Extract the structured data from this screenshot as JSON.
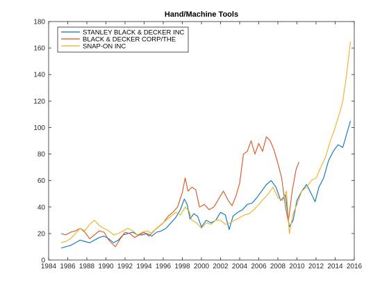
{
  "chart_data": {
    "type": "line",
    "title": "Hand/Machine Tools",
    "xlabel": "",
    "ylabel": "",
    "xlim": [
      1984,
      2016
    ],
    "ylim": [
      0,
      180
    ],
    "xticks": [
      "1984",
      "1986",
      "1988",
      "1990",
      "1992",
      "1994",
      "1996",
      "1998",
      "2000",
      "2002",
      "2004",
      "2006",
      "2008",
      "2010",
      "2012",
      "2014",
      "2016"
    ],
    "yticks": [
      "0",
      "20",
      "40",
      "60",
      "80",
      "100",
      "120",
      "140",
      "160",
      "180"
    ],
    "grid": false,
    "legend_position": "top-left",
    "series": [
      {
        "name": "STANLEY BLACK & DECKER INC",
        "color": "#0072BD",
        "x": [
          1985.3,
          1985.8,
          1986.3,
          1986.8,
          1987.3,
          1987.8,
          1988.3,
          1988.8,
          1989.3,
          1989.8,
          1990.3,
          1990.8,
          1991.3,
          1991.8,
          1992.3,
          1992.8,
          1993.3,
          1993.8,
          1994.3,
          1994.8,
          1995.3,
          1995.8,
          1996.3,
          1996.8,
          1997.3,
          1997.8,
          1998.2,
          1998.5,
          1998.8,
          1999.2,
          1999.6,
          2000.0,
          2000.5,
          2001.0,
          2001.5,
          2002.0,
          2002.5,
          2002.9,
          2003.3,
          2003.8,
          2004.3,
          2004.8,
          2005.3,
          2005.8,
          2006.3,
          2006.8,
          2007.3,
          2007.8,
          2008.3,
          2008.8,
          2009.2,
          2009.6,
          2010.0,
          2010.5,
          2011.0,
          2011.5,
          2011.9,
          2012.3,
          2012.8,
          2013.3,
          2013.8,
          2014.3,
          2014.8,
          2015.2,
          2015.6
        ],
        "values": [
          9,
          10,
          11,
          13,
          15,
          14,
          13,
          15,
          17,
          18,
          16,
          13,
          15,
          19,
          20,
          21,
          19,
          19,
          20,
          18,
          21,
          22,
          24,
          28,
          32,
          38,
          46,
          42,
          31,
          35,
          33,
          25,
          30,
          28,
          30,
          36,
          34,
          23,
          33,
          36,
          38,
          42,
          43,
          47,
          52,
          57,
          60,
          55,
          45,
          49,
          25,
          30,
          45,
          52,
          57,
          50,
          44,
          55,
          62,
          75,
          82,
          87,
          85,
          95,
          105
        ]
      },
      {
        "name": "BLACK & DECKER CORP/THE",
        "color": "#D95319",
        "x": [
          1985.3,
          1985.8,
          1986.3,
          1986.8,
          1987.3,
          1987.8,
          1988.3,
          1988.8,
          1989.3,
          1989.8,
          1990.3,
          1990.7,
          1991.0,
          1991.5,
          1992.0,
          1992.5,
          1993.0,
          1993.5,
          1994.0,
          1994.5,
          1995.0,
          1995.5,
          1996.0,
          1996.5,
          1997.0,
          1997.5,
          1998.0,
          1998.3,
          1998.6,
          1999.0,
          1999.4,
          1999.8,
          2000.3,
          2000.8,
          2001.3,
          2001.8,
          2002.3,
          2002.8,
          2003.2,
          2003.6,
          2004.0,
          2004.4,
          2004.8,
          2005.2,
          2005.6,
          2006.0,
          2006.4,
          2006.8,
          2007.2,
          2007.6,
          2008.0,
          2008.4,
          2008.8,
          2009.1,
          2009.5,
          2009.9,
          2010.2
        ],
        "values": [
          20,
          19,
          21,
          22,
          24,
          21,
          16,
          19,
          22,
          21,
          15,
          12,
          10,
          16,
          21,
          20,
          17,
          19,
          21,
          18,
          22,
          25,
          28,
          33,
          36,
          40,
          51,
          62,
          52,
          55,
          53,
          40,
          42,
          38,
          40,
          46,
          52,
          45,
          41,
          48,
          58,
          80,
          82,
          90,
          80,
          88,
          82,
          93,
          90,
          83,
          73,
          62,
          40,
          29,
          52,
          68,
          74
        ]
      },
      {
        "name": "SNAP-ON INC",
        "color": "#EDB120",
        "x": [
          1985.3,
          1985.8,
          1986.3,
          1986.8,
          1987.3,
          1987.8,
          1988.3,
          1988.8,
          1989.3,
          1989.8,
          1990.3,
          1990.8,
          1991.3,
          1991.8,
          1992.3,
          1992.8,
          1993.3,
          1993.8,
          1994.3,
          1994.8,
          1995.3,
          1995.8,
          1996.3,
          1996.8,
          1997.3,
          1997.8,
          1998.3,
          1998.7,
          1999.0,
          1999.5,
          2000.0,
          2000.5,
          2001.0,
          2001.5,
          2002.0,
          2002.5,
          2003.0,
          2003.5,
          2004.0,
          2004.5,
          2005.0,
          2005.5,
          2006.0,
          2006.5,
          2007.0,
          2007.5,
          2008.0,
          2008.5,
          2008.9,
          2009.2,
          2009.6,
          2010.0,
          2010.5,
          2011.0,
          2011.5,
          2012.0,
          2012.5,
          2013.0,
          2013.5,
          2014.0,
          2014.5,
          2014.8,
          2015.2,
          2015.6
        ],
        "values": [
          13,
          14,
          16,
          20,
          24,
          22,
          27,
          30,
          26,
          24,
          22,
          19,
          20,
          22,
          24,
          22,
          19,
          21,
          22,
          20,
          24,
          27,
          30,
          33,
          36,
          34,
          40,
          37,
          30,
          28,
          24,
          28,
          27,
          30,
          30,
          27,
          28,
          30,
          32,
          34,
          35,
          38,
          42,
          46,
          50,
          55,
          47,
          45,
          52,
          20,
          35,
          42,
          52,
          55,
          60,
          62,
          70,
          78,
          90,
          100,
          112,
          120,
          140,
          165
        ]
      }
    ]
  }
}
